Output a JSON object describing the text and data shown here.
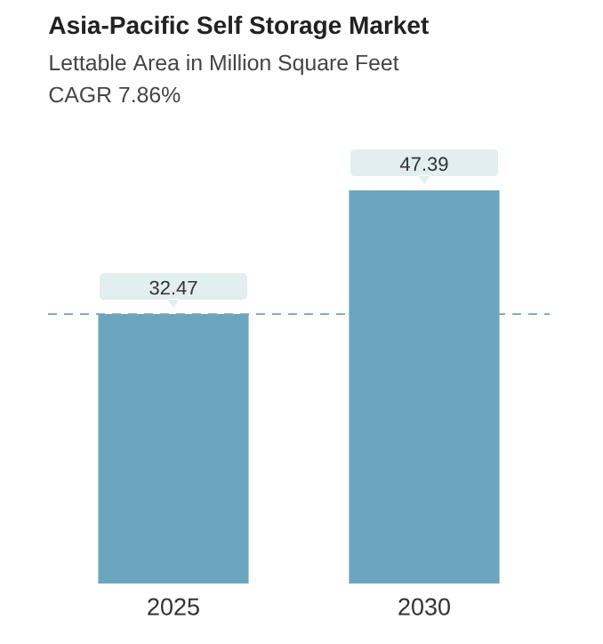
{
  "chart_data": {
    "type": "bar",
    "title": "Asia-Pacific Self Storage Market",
    "subtitle": "Lettable Area in Million Square Feet",
    "annotations": [
      "CAGR 7.86%"
    ],
    "categories": [
      "2025",
      "2030"
    ],
    "values": [
      32.47,
      47.39
    ],
    "color": "#6ba6be",
    "data_labels": true,
    "ref_lines": [
      {
        "axis": "y",
        "value": 32.47,
        "color": "#7b9dbd",
        "line_style": "dashed"
      }
    ]
  }
}
